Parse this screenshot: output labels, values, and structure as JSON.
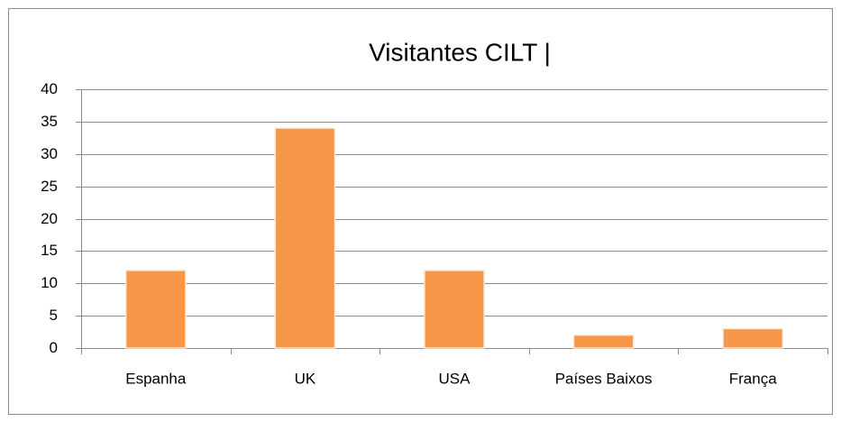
{
  "chart_data": {
    "type": "bar",
    "title": "Visitantes CILT |",
    "categories": [
      "Espanha",
      "UK",
      "USA",
      "Países Baixos",
      "França"
    ],
    "values": [
      12,
      34,
      12,
      2,
      3
    ],
    "color": "#f79646",
    "ylim": [
      0,
      40
    ],
    "yticks": [
      0,
      5,
      10,
      15,
      20,
      25,
      30,
      35,
      40
    ],
    "grid": true
  }
}
